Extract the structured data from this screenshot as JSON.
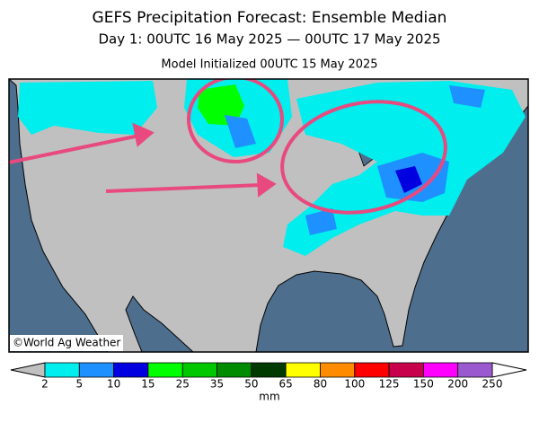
{
  "header": {
    "title": "GEFS Precipitation Forecast: Ensemble Median",
    "subtitle": "Day 1: 00UTC 16 May 2025 — 00UTC 17 May 2025",
    "initialized": "Model Initialized 00UTC 15 May 2025"
  },
  "map": {
    "credit": "©World Ag Weather"
  },
  "legend": {
    "labels": [
      "2",
      "5",
      "10",
      "15",
      "25",
      "35",
      "50",
      "65",
      "80",
      "100",
      "125",
      "150",
      "200",
      "250"
    ],
    "colors": [
      "#00eeee",
      "#1e90ff",
      "#0000e0",
      "#00ff00",
      "#00c800",
      "#008b00",
      "#003a00",
      "#ffff00",
      "#ff8c00",
      "#ff0000",
      "#c8004b",
      "#ff00ff",
      "#9b59d0"
    ],
    "unit": "mm"
  }
}
